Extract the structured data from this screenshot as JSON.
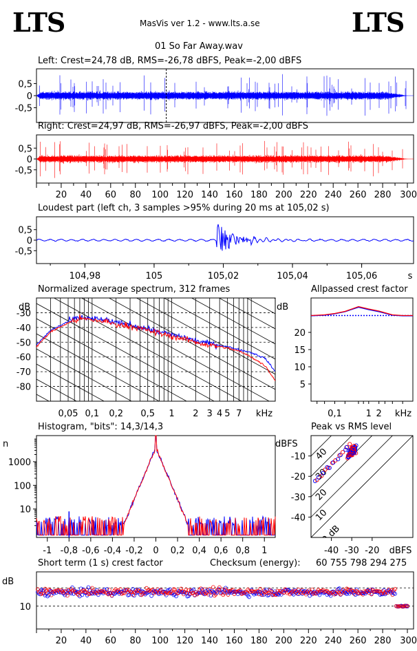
{
  "header": {
    "logo_left": "LTS",
    "logo_right": "LTS",
    "app": "MasVis ver 1.2 - www.lts.a.se",
    "file": "01 So Far Away.wav"
  },
  "colors": {
    "left": "#0000ff",
    "right": "#ff0000",
    "grid": "#000000"
  },
  "chart_data": [
    {
      "type": "line",
      "id": "waveform-left",
      "title": "Left: Crest=24,78 dB, RMS=-26,78 dBFS, Peak=-2,00 dBFS",
      "y_ticks": [
        "0,5",
        "0",
        "-0,5"
      ],
      "ylim": [
        -1,
        1
      ],
      "xlim": [
        0,
        305
      ],
      "marker_x": 105,
      "summary": {
        "crest_db": 24.78,
        "rms_dbfs": -26.78,
        "peak_dbfs": -2.0
      }
    },
    {
      "type": "line",
      "id": "waveform-right",
      "title": "Right: Crest=24,97 dB, RMS=-26,97 dBFS, Peak=-2,00 dBFS",
      "y_ticks": [
        "0,5",
        "0",
        "-0,5"
      ],
      "ylim": [
        -1,
        1
      ],
      "x_ticks": [
        "20",
        "40",
        "60",
        "80",
        "100",
        "120",
        "140",
        "160",
        "180",
        "200",
        "220",
        "240",
        "260",
        "280",
        "300s"
      ],
      "xlim": [
        0,
        305
      ],
      "summary": {
        "crest_db": 24.97,
        "rms_dbfs": -26.97,
        "peak_dbfs": -2.0
      }
    },
    {
      "type": "line",
      "id": "loudest-part",
      "title": "Loudest part (left  ch, 3 samples >95% during 20 ms at 105,02 s)",
      "y_ticks": [
        "0,5",
        "0",
        "-0,5"
      ],
      "x_ticks": [
        "104,98",
        "105",
        "105,02",
        "105,04",
        "105,06",
        "s"
      ],
      "xlim": [
        104.966,
        105.075
      ],
      "ylim": [
        -1,
        1
      ]
    },
    {
      "type": "line",
      "id": "average-spectrum",
      "title": "Normalized average spectrum, 312 frames",
      "ylabel": "dB",
      "y_ticks": [
        "-30",
        "-40",
        "-50",
        "-60",
        "-70",
        "-80"
      ],
      "x_ticks": [
        "0,05",
        "0,1",
        "0,2",
        "0,5",
        "1",
        "2",
        "3",
        "4",
        "5",
        "7",
        "kHz"
      ],
      "x": [
        0.02,
        0.03,
        0.05,
        0.07,
        0.1,
        0.15,
        0.2,
        0.3,
        0.5,
        0.7,
        1,
        1.5,
        2,
        3,
        4,
        5,
        7,
        10,
        15,
        20
      ],
      "series": [
        {
          "values": [
            -52,
            -42,
            -36,
            -33,
            -34,
            -35,
            -37,
            -38,
            -41,
            -43,
            -45,
            -47,
            -49,
            -51,
            -52,
            -53,
            -55,
            -57,
            -61,
            -70
          ]
        },
        {
          "values": [
            -53,
            -43,
            -37,
            -34,
            -35,
            -36,
            -38,
            -39,
            -42,
            -44,
            -46,
            -48,
            -50,
            -52,
            -53,
            -54,
            -56,
            -60,
            -66,
            -76
          ]
        }
      ]
    },
    {
      "type": "line",
      "id": "allpassed-crest",
      "title": "Allpassed crest factor",
      "ylabel": "dB",
      "y_ticks": [
        "20",
        "15",
        "10",
        "5"
      ],
      "x_ticks": [
        "0,1",
        "1",
        "2",
        "kHz"
      ],
      "x": [
        0.02,
        0.05,
        0.1,
        0.2,
        0.5,
        1,
        2,
        5,
        10,
        20
      ],
      "series": [
        {
          "values": [
            24.8,
            25.0,
            25.4,
            26.0,
            27.3,
            26.6,
            26.0,
            25.0,
            24.8,
            24.8
          ]
        },
        {
          "values": [
            24.9,
            25.1,
            25.5,
            26.1,
            27.5,
            26.8,
            26.2,
            25.1,
            24.9,
            24.9
          ]
        }
      ],
      "reference_db": 24.9
    },
    {
      "type": "line",
      "id": "histogram",
      "title": "Histogram, \"bits\": 14,3/14,3",
      "ylabel": "n",
      "y_ticks": [
        "1000",
        "100",
        "10"
      ],
      "x_ticks": [
        "-1",
        "-0,8",
        "-0,6",
        "-0,4",
        "-0,2",
        "0",
        "0,2",
        "0,4",
        "0,6",
        "0,8",
        "1"
      ],
      "xlim": [
        -1.1,
        1.1
      ]
    },
    {
      "type": "scatter",
      "id": "peak-vs-rms",
      "title": "Peak vs RMS level",
      "ylabel": "dBFS",
      "y_ticks": [
        "-10",
        "-20",
        "-30",
        "-40"
      ],
      "x_ticks": [
        "-40",
        "-30",
        "-20",
        "dBFS"
      ],
      "diagonal_labels": [
        "40",
        "30",
        "20",
        "10",
        "0 dB"
      ]
    },
    {
      "type": "scatter",
      "id": "short-term-crest",
      "title": "Short term (1 s) crest factor",
      "ylabel": "dB",
      "y_ticks": [
        "10"
      ],
      "x_ticks": [
        "20",
        "40",
        "60",
        "80",
        "100",
        "120",
        "140",
        "160",
        "180",
        "200",
        "220",
        "240",
        "260",
        "280",
        "300s"
      ],
      "xlim": [
        0,
        305
      ],
      "checksum_label": "Checksum (energy):",
      "checksum_value": "60 755 798 294 275"
    }
  ]
}
